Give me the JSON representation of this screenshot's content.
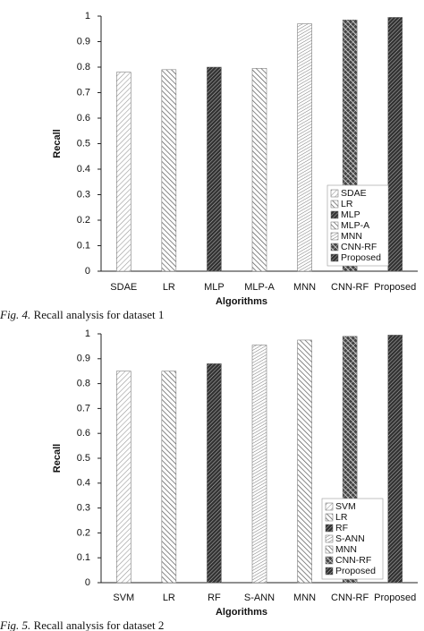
{
  "chart_data": [
    {
      "type": "bar",
      "caption_label": "Fig. 4.",
      "caption": "Recall analysis for dataset 1",
      "x_label": "Algorithms",
      "y_label": "Recall",
      "categories": [
        "SDAE",
        "LR",
        "MLP",
        "MLP-A",
        "MNN",
        "CNN-RF",
        "Proposed"
      ],
      "values": [
        0.78,
        0.79,
        0.8,
        0.795,
        0.97,
        0.985,
        0.995
      ],
      "hatches": [
        "light",
        "diag",
        "dense",
        "diag",
        "fine",
        "cross",
        "dense"
      ],
      "ylim": [
        0,
        1
      ],
      "yticks": [
        0,
        0.1,
        0.2,
        0.3,
        0.4,
        0.5,
        0.6,
        0.7,
        0.8,
        0.9,
        1
      ],
      "grid": false,
      "legend": "lower right"
    },
    {
      "type": "bar",
      "caption_label": "Fig. 5.",
      "caption": "Recall analysis for dataset 2",
      "x_label": "Algorithms",
      "y_label": "Recall",
      "categories": [
        "SVM",
        "LR",
        "RF",
        "S-ANN",
        "MNN",
        "CNN-RF",
        "Proposed"
      ],
      "values": [
        0.85,
        0.85,
        0.88,
        0.955,
        0.975,
        0.99,
        0.995
      ],
      "hatches": [
        "light",
        "diag",
        "dense",
        "fine",
        "diag",
        "cross",
        "dense"
      ],
      "ylim": [
        0,
        1
      ],
      "yticks": [
        0,
        0.1,
        0.2,
        0.3,
        0.4,
        0.5,
        0.6,
        0.7,
        0.8,
        0.9,
        1
      ],
      "grid": false,
      "legend": "lower right"
    }
  ]
}
